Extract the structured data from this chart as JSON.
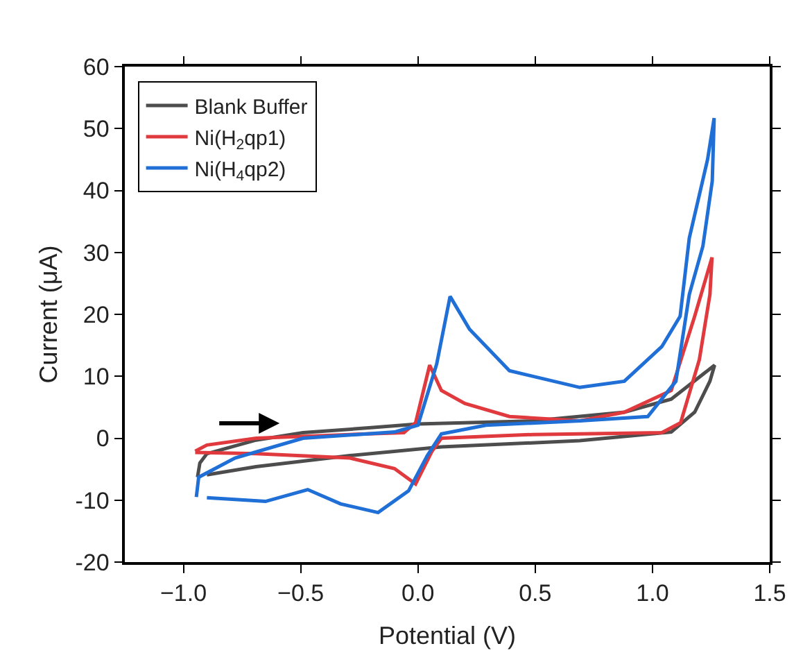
{
  "chart_data": {
    "type": "line",
    "xlabel": "Potential (V)",
    "ylabel": "Current (μA)",
    "xlim": [
      -1.25,
      1.5
    ],
    "xticks": [
      {
        "value": -1.0,
        "label": "−1.0"
      },
      {
        "value": -0.5,
        "label": "−0.5"
      },
      {
        "value": 0,
        "label": "0.0"
      },
      {
        "value": 0.5,
        "label": "0.5"
      },
      {
        "value": 1.0,
        "label": "1.0"
      },
      {
        "value": 1.5,
        "label": "1.5"
      }
    ],
    "ylim": [
      -20,
      60
    ],
    "yticks": [
      -20,
      -10,
      0,
      10,
      20,
      30,
      40,
      50,
      60
    ],
    "legend": "top left",
    "marker": "none",
    "line_style": "solid",
    "series": [
      {
        "name": "Blank Buffer",
        "color": "#4d4d4d",
        "x": [
          -0.94,
          -0.93,
          -0.9,
          -0.69,
          -0.49,
          -0.2,
          0,
          0.49,
          0.88,
          1.08,
          1.265,
          1.245,
          1.18,
          1.08,
          0.69,
          0.1,
          -0.29,
          -0.69,
          -0.9
        ],
        "values": [
          -6.3,
          -4,
          -2.5,
          -0.3,
          0.9,
          1.7,
          2.3,
          2.8,
          4.2,
          6.3,
          11.8,
          9.2,
          4.2,
          1.0,
          -0.4,
          -1.4,
          -2.8,
          -4.6,
          -5.9
        ]
      },
      {
        "name": "Ni(H$_{2}$qp1)",
        "color": "#e03a3e",
        "x": [
          -0.95,
          -0.9,
          -0.69,
          -0.29,
          -0.06,
          -0.01,
          0.05,
          0.1,
          0.2,
          0.39,
          0.69,
          0.88,
          1.08,
          1.18,
          1.254,
          1.245,
          1.2,
          1.12,
          1.04,
          0.49,
          0.1,
          0.06,
          -0.01,
          -0.1,
          -0.29,
          -0.69,
          -0.95
        ],
        "values": [
          -2.1,
          -1.1,
          0,
          0.6,
          0.9,
          2.5,
          11.8,
          7.7,
          5.6,
          3.5,
          2.8,
          4.2,
          7.7,
          19.7,
          29.2,
          23.2,
          12.7,
          2.5,
          0.9,
          0.6,
          0,
          -2.1,
          -7.4,
          -4.9,
          -3.2,
          -2.5,
          -2.3
        ]
      },
      {
        "name": "Ni(H$_{4}$qp2)",
        "color": "#1f6fd6",
        "x": [
          -0.945,
          -0.935,
          -0.78,
          -0.49,
          -0.1,
          0,
          0.08,
          0.137,
          0.22,
          0.39,
          0.69,
          0.88,
          1.04,
          1.118,
          1.157,
          1.235,
          1.263,
          1.255,
          1.215,
          1.157,
          1.1,
          0.98,
          0.69,
          0.29,
          0.1,
          0.04,
          -0.04,
          -0.17,
          -0.33,
          -0.47,
          -0.65,
          -0.78,
          -0.9
        ],
        "values": [
          -9.5,
          -6.3,
          -3.2,
          0,
          1.0,
          2.1,
          12,
          22.9,
          17.6,
          10.9,
          8.2,
          9.2,
          14.8,
          19.7,
          32.3,
          45,
          51.7,
          41.5,
          31,
          23.2,
          9.2,
          3.5,
          2.8,
          2.1,
          0.7,
          -2.8,
          -8.5,
          -12,
          -10.6,
          -8.3,
          -10.2,
          -9.9,
          -9.6
        ]
      }
    ]
  }
}
